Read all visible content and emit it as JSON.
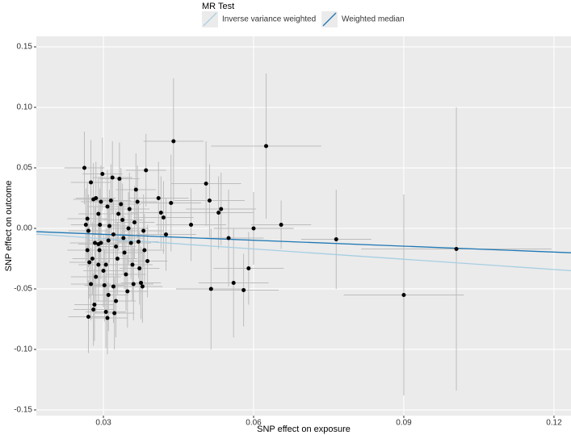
{
  "chart_data": {
    "type": "scatter",
    "legend_title": "MR Test",
    "xlabel": "SNP effect on exposure",
    "ylabel": "SNP effect on outcome",
    "xlim": [
      0.0166,
      0.1234
    ],
    "ylim": [
      -0.1547,
      0.1587
    ],
    "xticks": [
      0.03,
      0.06,
      0.09,
      0.12
    ],
    "yticks": [
      -0.15,
      {
        "value": -0.1,
        "label": "-0.10"
      },
      -0.05,
      {
        "value": 0,
        "label": "0.00"
      },
      0.05,
      {
        "value": 0.1,
        "label": "0.10"
      },
      0.15
    ],
    "grid": true,
    "point_color": "#000000",
    "errorbar_color": "#bdbdbd",
    "lines": [
      {
        "name": "Inverse variance weighted",
        "color": "#a6cee3",
        "slope": -0.283
      },
      {
        "name": "Weighted median",
        "color": "#1f78b4",
        "slope": -0.163
      }
    ],
    "x": [
      0.0262,
      0.0275,
      0.0268,
      0.0265,
      0.027,
      0.0268,
      0.0272,
      0.0275,
      0.027,
      0.0282,
      0.028,
      0.0285,
      0.029,
      0.0278,
      0.0283,
      0.029,
      0.0295,
      0.0292,
      0.028,
      0.0285,
      0.029,
      0.0293,
      0.0295,
      0.0298,
      0.03,
      0.0302,
      0.0305,
      0.0308,
      0.031,
      0.0305,
      0.031,
      0.0312,
      0.0308,
      0.0315,
      0.0318,
      0.032,
      0.0322,
      0.0325,
      0.032,
      0.0328,
      0.0325,
      0.033,
      0.0332,
      0.0335,
      0.0338,
      0.034,
      0.0342,
      0.0345,
      0.0348,
      0.035,
      0.0352,
      0.0355,
      0.0358,
      0.036,
      0.0362,
      0.0365,
      0.0368,
      0.037,
      0.0372,
      0.0375,
      0.0378,
      0.038,
      0.0382,
      0.0385,
      0.0388,
      0.041,
      0.0415,
      0.042,
      0.0425,
      0.0435,
      0.044,
      0.0475,
      0.0505,
      0.0512,
      0.0515,
      0.053,
      0.0535,
      0.055,
      0.056,
      0.058,
      0.059,
      0.06,
      0.0625,
      0.0655,
      0.0765,
      0.09,
      0.1005
    ],
    "y": [
      0.05,
      0.038,
      0.008,
      0.003,
      -0.002,
      -0.018,
      -0.028,
      -0.046,
      -0.073,
      -0.063,
      -0.067,
      -0.04,
      -0.03,
      -0.025,
      -0.012,
      -0.013,
      -0.012,
      -0.018,
      0.024,
      0.025,
      0.012,
      0.003,
      0.022,
      0.045,
      -0.035,
      -0.047,
      -0.069,
      -0.074,
      -0.055,
      -0.03,
      -0.01,
      0.002,
      0.018,
      0.023,
      0.042,
      -0.005,
      -0.07,
      -0.06,
      -0.048,
      -0.025,
      -0.015,
      0.012,
      0.041,
      0.02,
      0.007,
      -0.008,
      -0.02,
      -0.038,
      -0.052,
      0,
      0.016,
      -0.012,
      -0.03,
      -0.046,
      0.005,
      0.032,
      0.022,
      -0.011,
      -0.033,
      -0.045,
      -0.048,
      -0.002,
      -0.018,
      0.048,
      -0.027,
      0.025,
      0.013,
      0.009,
      -0.005,
      0.021,
      0.072,
      0.003,
      0.037,
      0.023,
      -0.05,
      0.013,
      0.016,
      -0.008,
      -0.045,
      -0.051,
      -0.033,
      0,
      0.068,
      0.003,
      -0.009,
      -0.055,
      -0.017
    ],
    "xerr": [
      0.004,
      0.004,
      0.004,
      0.003,
      0.004,
      0.004,
      0.004,
      0.004,
      0.004,
      0.004,
      0.004,
      0.005,
      0.004,
      0.004,
      0.005,
      0.004,
      0.004,
      0.004,
      0.004,
      0.004,
      0.004,
      0.004,
      0.004,
      0.004,
      0.004,
      0.004,
      0.004,
      0.004,
      0.004,
      0.004,
      0.004,
      0.004,
      0.004,
      0.004,
      0.004,
      0.004,
      0.004,
      0.004,
      0.004,
      0.004,
      0.004,
      0.004,
      0.004,
      0.004,
      0.004,
      0.004,
      0.004,
      0.004,
      0.004,
      0.004,
      0.004,
      0.004,
      0.004,
      0.004,
      0.004,
      0.004,
      0.004,
      0.004,
      0.004,
      0.004,
      0.004,
      0.004,
      0.004,
      0.004,
      0.004,
      0.006,
      0.006,
      0.006,
      0.006,
      0.006,
      0.006,
      0.007,
      0.007,
      0.007,
      0.007,
      0.007,
      0.007,
      0.007,
      0.007,
      0.007,
      0.007,
      0.008,
      0.011,
      0.006,
      0.007,
      0.012,
      0.019
    ],
    "yerr": [
      0.03,
      0.035,
      0.03,
      0.03,
      0.03,
      0.03,
      0.03,
      0.03,
      0.03,
      0.03,
      0.03,
      0.03,
      0.03,
      0.03,
      0.03,
      0.03,
      0.03,
      0.03,
      0.03,
      0.03,
      0.03,
      0.03,
      0.03,
      0.03,
      0.03,
      0.03,
      0.03,
      0.03,
      0.03,
      0.03,
      0.03,
      0.03,
      0.03,
      0.03,
      0.03,
      0.03,
      0.03,
      0.03,
      0.03,
      0.03,
      0.03,
      0.03,
      0.03,
      0.03,
      0.03,
      0.03,
      0.03,
      0.03,
      0.03,
      0.03,
      0.03,
      0.03,
      0.03,
      0.03,
      0.03,
      0.03,
      0.03,
      0.03,
      0.03,
      0.03,
      0.03,
      0.03,
      0.03,
      0.03,
      0.03,
      0.03,
      0.03,
      0.03,
      0.03,
      0.04,
      0.052,
      0.03,
      0.035,
      0.03,
      0.05,
      0.03,
      0.03,
      0.04,
      0.045,
      0.03,
      0.03,
      0.03,
      0.06,
      0.02,
      0.041,
      0.083,
      0.117
    ]
  }
}
